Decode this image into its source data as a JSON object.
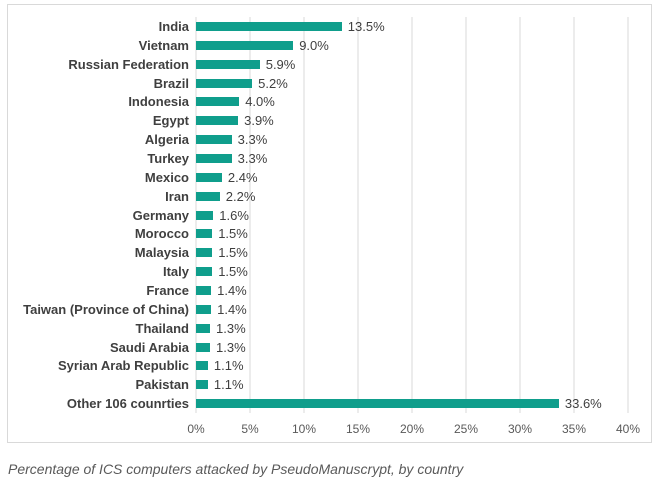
{
  "chart_data": {
    "type": "bar",
    "orientation": "horizontal",
    "title": "",
    "xlabel": "",
    "ylabel": "",
    "categories": [
      "India",
      "Vietnam",
      "Russian Federation",
      "Brazil",
      "Indonesia",
      "Egypt",
      "Algeria",
      "Turkey",
      "Mexico",
      "Iran",
      "Germany",
      "Morocco",
      "Malaysia",
      "Italy",
      "France",
      "Taiwan (Province of China)",
      "Thailand",
      "Saudi Arabia",
      "Syrian Arab Republic",
      "Pakistan",
      "Other 106 counrties"
    ],
    "values": [
      13.5,
      9.0,
      5.9,
      5.2,
      4.0,
      3.9,
      3.3,
      3.3,
      2.4,
      2.2,
      1.6,
      1.5,
      1.5,
      1.5,
      1.4,
      1.4,
      1.3,
      1.3,
      1.1,
      1.1,
      33.6
    ],
    "value_labels": [
      "13.5%",
      "9.0%",
      "5.9%",
      "5.2%",
      "4.0%",
      "3.9%",
      "3.3%",
      "3.3%",
      "2.4%",
      "2.2%",
      "1.6%",
      "1.5%",
      "1.5%",
      "1.5%",
      "1.4%",
      "1.4%",
      "1.3%",
      "1.3%",
      "1.1%",
      "1.1%",
      "33.6%"
    ],
    "xlim": [
      0,
      40
    ],
    "x_ticks": [
      "0%",
      "5%",
      "10%",
      "15%",
      "20%",
      "25%",
      "30%",
      "35%",
      "40%"
    ],
    "grid": true,
    "legend": false
  },
  "caption": "Percentage of ICS computers attacked by PseudoManuscrypt, by country",
  "colors": {
    "bar": "#0f9e8c",
    "gridline": "#d9d9d9",
    "frame_border": "#d9d9d9",
    "label_text": "#3f3f3f",
    "axis_text": "#595959",
    "caption_text": "#595959"
  }
}
